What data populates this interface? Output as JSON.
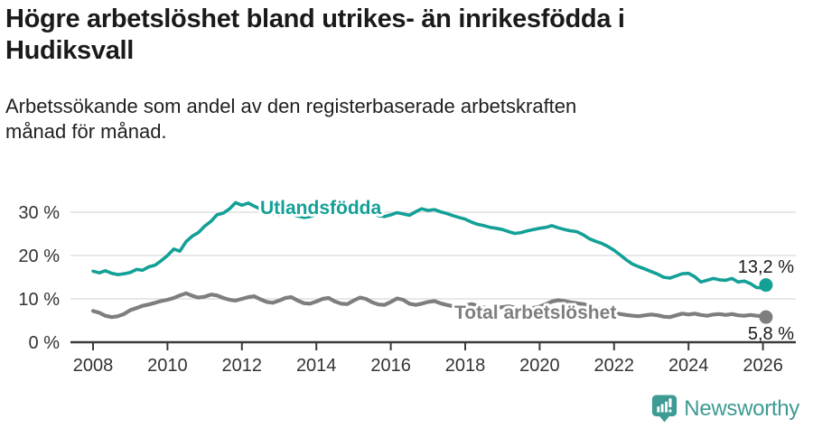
{
  "header": {
    "title": "Högre arbetslöshet bland utrikes- än inrikesfödda i Hudiksvall",
    "subtitle": "Arbetssökande som andel av den registerbaserade arbetskraften månad för månad."
  },
  "footer": {
    "brand": "Newsworthy"
  },
  "colors": {
    "foreign_series": "#13a096",
    "total_series": "#7e7e7e",
    "grid": "#d9d9d9",
    "axis": "#3a3a3a",
    "tick_label": "#333333",
    "value_label": "#1a1a1a",
    "brand": "#3e9b94"
  },
  "chart_data": {
    "type": "line",
    "title": "Högre arbetslöshet bland utrikes- än inrikesfödda i Hudiksvall",
    "subtitle": "Arbetssökande som andel av den registerbaserade arbetskraften månad för månad.",
    "unit": "%",
    "x_axis": {
      "tick_years": [
        2008,
        2010,
        2012,
        2014,
        2016,
        2018,
        2020,
        2022,
        2024,
        2026
      ],
      "range": [
        2008,
        2026.9
      ]
    },
    "y_axis": {
      "tick_values": [
        0,
        10,
        20,
        30
      ],
      "tick_suffix": " %",
      "range": [
        0,
        34
      ],
      "grid": true
    },
    "legend_position": "inline-labels",
    "series": [
      {
        "name": "Utlandsfödda",
        "color": "#13a096",
        "end_label": "13,2 %",
        "end_value": 13.2,
        "points": [
          [
            2008.0,
            16.4
          ],
          [
            2008.17,
            16.0
          ],
          [
            2008.33,
            16.5
          ],
          [
            2008.5,
            15.9
          ],
          [
            2008.67,
            15.6
          ],
          [
            2008.83,
            15.8
          ],
          [
            2009.0,
            16.1
          ],
          [
            2009.17,
            16.8
          ],
          [
            2009.33,
            16.6
          ],
          [
            2009.5,
            17.4
          ],
          [
            2009.67,
            17.8
          ],
          [
            2009.83,
            18.8
          ],
          [
            2010.0,
            20.0
          ],
          [
            2010.17,
            21.5
          ],
          [
            2010.33,
            21.0
          ],
          [
            2010.5,
            23.2
          ],
          [
            2010.67,
            24.5
          ],
          [
            2010.83,
            25.3
          ],
          [
            2011.0,
            26.8
          ],
          [
            2011.17,
            27.9
          ],
          [
            2011.33,
            29.4
          ],
          [
            2011.5,
            29.8
          ],
          [
            2011.67,
            30.8
          ],
          [
            2011.83,
            32.2
          ],
          [
            2012.0,
            31.6
          ],
          [
            2012.17,
            32.1
          ],
          [
            2012.33,
            31.4
          ],
          [
            2012.5,
            30.7
          ],
          [
            2012.67,
            30.3
          ],
          [
            2012.83,
            29.8
          ],
          [
            2013.0,
            29.3
          ],
          [
            2013.17,
            29.7
          ],
          [
            2013.33,
            29.5
          ],
          [
            2013.5,
            29.1
          ],
          [
            2013.67,
            28.8
          ],
          [
            2013.83,
            29.0
          ],
          [
            2014.0,
            29.5
          ],
          [
            2014.17,
            29.9
          ],
          [
            2014.33,
            30.1
          ],
          [
            2014.5,
            30.0
          ],
          [
            2014.67,
            30.4
          ],
          [
            2014.83,
            30.7
          ],
          [
            2015.0,
            31.2
          ],
          [
            2015.17,
            30.9
          ],
          [
            2015.33,
            30.2
          ],
          [
            2015.5,
            29.6
          ],
          [
            2015.67,
            29.2
          ],
          [
            2015.83,
            29.0
          ],
          [
            2016.0,
            29.4
          ],
          [
            2016.17,
            29.9
          ],
          [
            2016.33,
            29.6
          ],
          [
            2016.5,
            29.3
          ],
          [
            2016.67,
            30.1
          ],
          [
            2016.83,
            30.8
          ],
          [
            2017.0,
            30.4
          ],
          [
            2017.17,
            30.6
          ],
          [
            2017.33,
            30.1
          ],
          [
            2017.5,
            29.7
          ],
          [
            2017.67,
            29.2
          ],
          [
            2017.83,
            28.8
          ],
          [
            2018.0,
            28.4
          ],
          [
            2018.17,
            27.7
          ],
          [
            2018.33,
            27.2
          ],
          [
            2018.5,
            26.9
          ],
          [
            2018.67,
            26.5
          ],
          [
            2018.83,
            26.3
          ],
          [
            2019.0,
            26.0
          ],
          [
            2019.17,
            25.5
          ],
          [
            2019.33,
            25.1
          ],
          [
            2019.5,
            25.3
          ],
          [
            2019.67,
            25.7
          ],
          [
            2019.83,
            26.0
          ],
          [
            2020.0,
            26.3
          ],
          [
            2020.17,
            26.5
          ],
          [
            2020.33,
            26.9
          ],
          [
            2020.5,
            26.4
          ],
          [
            2020.67,
            26.0
          ],
          [
            2020.83,
            25.7
          ],
          [
            2021.0,
            25.5
          ],
          [
            2021.17,
            24.8
          ],
          [
            2021.33,
            23.9
          ],
          [
            2021.5,
            23.3
          ],
          [
            2021.67,
            22.8
          ],
          [
            2021.83,
            22.1
          ],
          [
            2022.0,
            21.2
          ],
          [
            2022.17,
            20.1
          ],
          [
            2022.33,
            19.0
          ],
          [
            2022.5,
            18.0
          ],
          [
            2022.67,
            17.4
          ],
          [
            2022.83,
            16.9
          ],
          [
            2023.0,
            16.3
          ],
          [
            2023.17,
            15.7
          ],
          [
            2023.33,
            15.0
          ],
          [
            2023.5,
            14.8
          ],
          [
            2023.67,
            15.3
          ],
          [
            2023.83,
            15.8
          ],
          [
            2024.0,
            15.9
          ],
          [
            2024.17,
            15.1
          ],
          [
            2024.33,
            13.9
          ],
          [
            2024.5,
            14.3
          ],
          [
            2024.67,
            14.7
          ],
          [
            2024.83,
            14.4
          ],
          [
            2025.0,
            14.3
          ],
          [
            2025.17,
            14.7
          ],
          [
            2025.33,
            13.9
          ],
          [
            2025.5,
            14.1
          ],
          [
            2025.67,
            13.5
          ],
          [
            2025.83,
            12.6
          ],
          [
            2026.0,
            12.5
          ],
          [
            2026.08,
            13.2
          ]
        ]
      },
      {
        "name": "Total arbetslöshet",
        "color": "#7e7e7e",
        "end_label": "5,8 %",
        "end_value": 5.8,
        "points": [
          [
            2008.0,
            7.2
          ],
          [
            2008.17,
            6.8
          ],
          [
            2008.33,
            6.1
          ],
          [
            2008.5,
            5.8
          ],
          [
            2008.67,
            6.0
          ],
          [
            2008.83,
            6.5
          ],
          [
            2009.0,
            7.4
          ],
          [
            2009.17,
            7.9
          ],
          [
            2009.33,
            8.4
          ],
          [
            2009.5,
            8.7
          ],
          [
            2009.67,
            9.1
          ],
          [
            2009.83,
            9.5
          ],
          [
            2010.0,
            9.8
          ],
          [
            2010.17,
            10.2
          ],
          [
            2010.33,
            10.8
          ],
          [
            2010.5,
            11.3
          ],
          [
            2010.67,
            10.7
          ],
          [
            2010.83,
            10.3
          ],
          [
            2011.0,
            10.5
          ],
          [
            2011.17,
            11.0
          ],
          [
            2011.33,
            10.8
          ],
          [
            2011.5,
            10.2
          ],
          [
            2011.67,
            9.8
          ],
          [
            2011.83,
            9.6
          ],
          [
            2012.0,
            10.0
          ],
          [
            2012.17,
            10.4
          ],
          [
            2012.33,
            10.6
          ],
          [
            2012.5,
            9.9
          ],
          [
            2012.67,
            9.3
          ],
          [
            2012.83,
            9.1
          ],
          [
            2013.0,
            9.6
          ],
          [
            2013.17,
            10.2
          ],
          [
            2013.33,
            10.4
          ],
          [
            2013.5,
            9.6
          ],
          [
            2013.67,
            9.0
          ],
          [
            2013.83,
            8.9
          ],
          [
            2014.0,
            9.4
          ],
          [
            2014.17,
            10.0
          ],
          [
            2014.33,
            10.2
          ],
          [
            2014.5,
            9.4
          ],
          [
            2014.67,
            8.9
          ],
          [
            2014.83,
            8.8
          ],
          [
            2015.0,
            9.6
          ],
          [
            2015.17,
            10.3
          ],
          [
            2015.33,
            10.0
          ],
          [
            2015.5,
            9.2
          ],
          [
            2015.67,
            8.7
          ],
          [
            2015.83,
            8.6
          ],
          [
            2016.0,
            9.3
          ],
          [
            2016.17,
            10.1
          ],
          [
            2016.33,
            9.8
          ],
          [
            2016.5,
            8.9
          ],
          [
            2016.67,
            8.6
          ],
          [
            2016.83,
            8.9
          ],
          [
            2017.0,
            9.3
          ],
          [
            2017.17,
            9.5
          ],
          [
            2017.33,
            9.0
          ],
          [
            2017.5,
            8.6
          ],
          [
            2017.67,
            8.3
          ],
          [
            2017.83,
            8.1
          ],
          [
            2018.0,
            8.5
          ],
          [
            2018.17,
            8.8
          ],
          [
            2018.33,
            8.4
          ],
          [
            2018.5,
            8.0
          ],
          [
            2018.67,
            7.8
          ],
          [
            2018.83,
            7.9
          ],
          [
            2019.0,
            8.1
          ],
          [
            2019.17,
            8.3
          ],
          [
            2019.33,
            8.0
          ],
          [
            2019.5,
            7.7
          ],
          [
            2019.67,
            7.6
          ],
          [
            2019.83,
            7.9
          ],
          [
            2020.0,
            8.2
          ],
          [
            2020.17,
            8.8
          ],
          [
            2020.33,
            9.4
          ],
          [
            2020.5,
            9.7
          ],
          [
            2020.67,
            9.5
          ],
          [
            2020.83,
            9.2
          ],
          [
            2021.0,
            9.0
          ],
          [
            2021.17,
            8.8
          ],
          [
            2021.33,
            8.4
          ],
          [
            2021.5,
            7.9
          ],
          [
            2021.67,
            7.5
          ],
          [
            2021.83,
            7.1
          ],
          [
            2022.0,
            6.8
          ],
          [
            2022.17,
            6.5
          ],
          [
            2022.33,
            6.3
          ],
          [
            2022.5,
            6.1
          ],
          [
            2022.67,
            6.0
          ],
          [
            2022.83,
            6.2
          ],
          [
            2023.0,
            6.4
          ],
          [
            2023.17,
            6.2
          ],
          [
            2023.33,
            5.9
          ],
          [
            2023.5,
            5.8
          ],
          [
            2023.67,
            6.2
          ],
          [
            2023.83,
            6.6
          ],
          [
            2024.0,
            6.4
          ],
          [
            2024.17,
            6.6
          ],
          [
            2024.33,
            6.3
          ],
          [
            2024.5,
            6.1
          ],
          [
            2024.67,
            6.4
          ],
          [
            2024.83,
            6.5
          ],
          [
            2025.0,
            6.3
          ],
          [
            2025.17,
            6.5
          ],
          [
            2025.33,
            6.2
          ],
          [
            2025.5,
            6.1
          ],
          [
            2025.67,
            6.3
          ],
          [
            2025.83,
            6.1
          ],
          [
            2026.0,
            6.0
          ],
          [
            2026.08,
            5.8
          ]
        ]
      }
    ]
  }
}
